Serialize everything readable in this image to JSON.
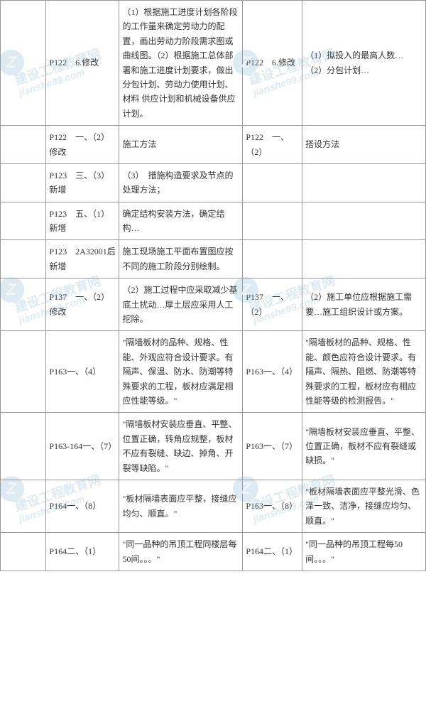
{
  "watermark": {
    "cn": "建设工程教育网",
    "en": "jianshe99.com",
    "badge": "Z"
  },
  "rows": [
    {
      "c0": "",
      "c1": "P122　6.修改",
      "c2": "（1）根据施工进度计划各阶段的工作量来确定劳动力的配置，画出劳动力阶段需求图或曲线图。（2）根据施工总体部署和施工进度计划要求，做出分包计划、劳动力使用计划、材料\n供应计划和机械设备供应计划。",
      "c3": "P122　6.修改",
      "c4": "（1）拟投入的最高人数…\n（2）分包计划…"
    },
    {
      "c0": "",
      "c1": "P122　一、（2）修改",
      "c2": "施工方法",
      "c3": "P122　一、（2）",
      "c4": "搭设方法"
    },
    {
      "c0": "",
      "c1": "P123　三、（3）新增",
      "c2": "（3）　措施构造要求及节点的处理方法；",
      "c3": "",
      "c4": ""
    },
    {
      "c0": "",
      "c1": "P123　五、（1）新增",
      "c2": "确定结构安装方法，确定结构…",
      "c3": "",
      "c4": ""
    },
    {
      "c0": "",
      "c1": "P123　2A32001后新增",
      "c2": "施工现场施工平面布置图应按不同的施工阶段分别绘制。",
      "c3": "",
      "c4": ""
    },
    {
      "c0": "",
      "c1": "P137　一、（2）修改",
      "c2": "（2）施工过程中应采取减少基底土扰动…厚土层应采用人工挖除。",
      "c3": "P137　一、（2）",
      "c4": "（2）施工单位应根据施工需要…施工组织设计或方案。"
    },
    {
      "c0": "",
      "c1": "P163一、（4）",
      "c2": "\"隔墙板材的品种、规格、性能、外观应符合设计要求。有隔声、保温、防水、防潮等特殊要求的工程，板材应满足相应性能等级。\"",
      "c3": "P163一、（4）",
      "c4": "\"隔墙板材的品种、规格、性能、颜色应符合设计要求。有隔声、隔热、阻燃、防潮等特殊要求的工程，板材应有相应性能等级的检测报告。\""
    },
    {
      "c0": "",
      "c1": "P163-164一、（7）",
      "c2": "\"隔墙板材安装应垂直、平整、位置正确，转角应规整，板材不应有裂缝、缺边、掉角、开裂等缺陷。\"",
      "c3": "P163一、（7）",
      "c4": "\"隔墙板材安装应垂直、平整、位置正确，板材不应有裂缝或缺损。\""
    },
    {
      "c0": "",
      "c1": "P164一、（8）",
      "c2": "\"板材隔墙表面应平整，接缝应均匀、顺直。\"",
      "c3": "P163一、（8）",
      "c4": "\"板材隔墙表面应平整光滑、色泽一致、洁净，接缝应均匀、顺直。\""
    },
    {
      "c0": "",
      "c1": "P164二、（1）",
      "c2": "\"同一品种的吊顶工程同楼层每50间。。。\"",
      "c3": "P164二、（1）",
      "c4": "\"同一品种的吊顶工程每50间。。。\""
    }
  ]
}
